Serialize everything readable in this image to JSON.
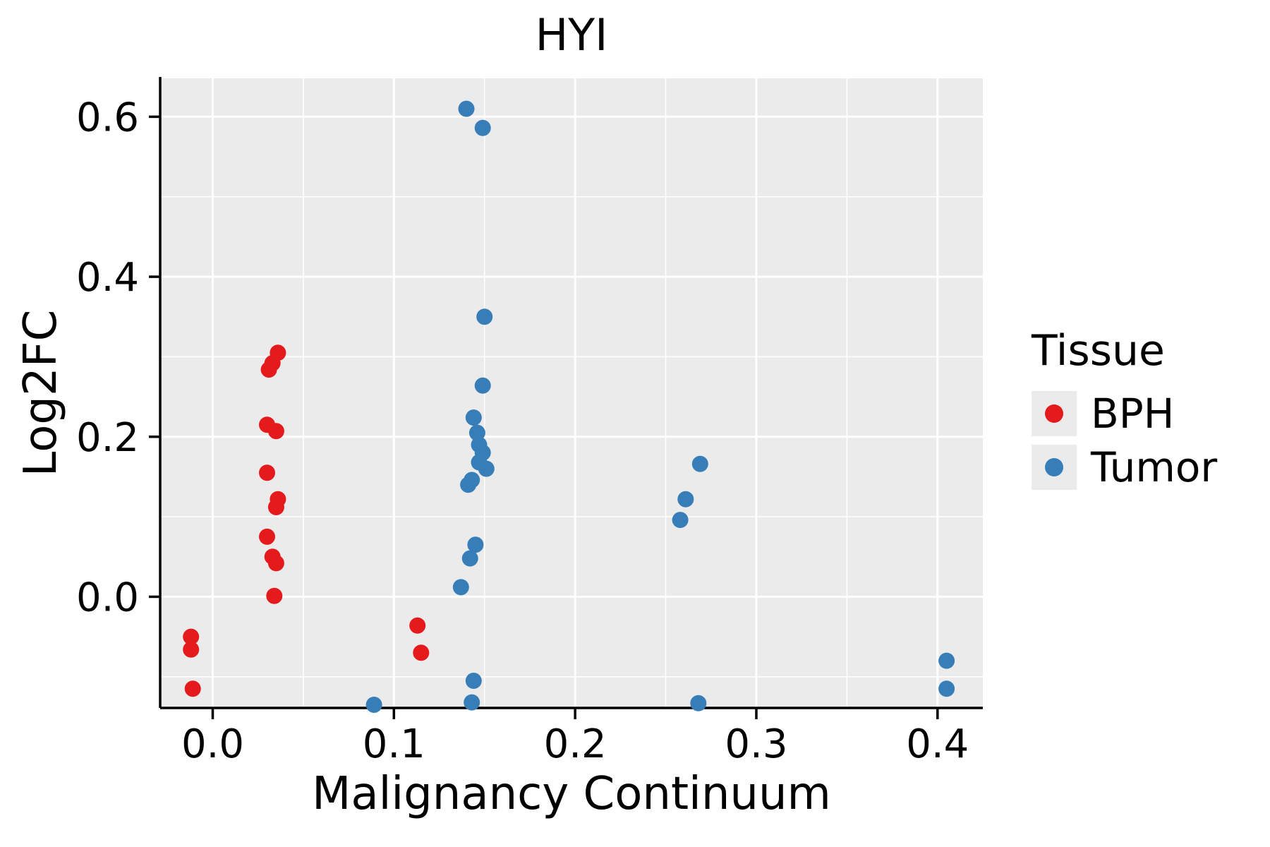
{
  "chart_data": {
    "type": "scatter",
    "title": "HYI",
    "xlabel": "Malignancy Continuum",
    "ylabel": "Log2FC",
    "legend_title": "Tissue",
    "legend_position": "right",
    "grid": true,
    "xlim": [
      -0.029,
      0.425
    ],
    "ylim": [
      -0.139,
      0.648
    ],
    "xticks": [
      0.0,
      0.1,
      0.2,
      0.3,
      0.4
    ],
    "xtick_labels": [
      "0.0",
      "0.1",
      "0.2",
      "0.3",
      "0.4"
    ],
    "yticks": [
      0.0,
      0.2,
      0.4,
      0.6
    ],
    "ytick_labels": [
      "0.0",
      "0.2",
      "0.4",
      "0.6"
    ],
    "xticks_minor": [
      0.05,
      0.15,
      0.25,
      0.35
    ],
    "yticks_minor": [
      -0.1,
      0.1,
      0.3,
      0.5
    ],
    "colors": {
      "panel_bg": "#EBEBEB",
      "grid": "#FFFFFF",
      "axis": "#000000",
      "bph": "#E41A1C",
      "tumor": "#377EB8"
    },
    "series": [
      {
        "name": "BPH",
        "color": "#E41A1C",
        "points": [
          [
            -0.012,
            -0.05
          ],
          [
            -0.012,
            -0.066
          ],
          [
            -0.011,
            -0.115
          ],
          [
            0.031,
            0.284
          ],
          [
            0.033,
            0.292
          ],
          [
            0.036,
            0.305
          ],
          [
            0.03,
            0.215
          ],
          [
            0.035,
            0.207
          ],
          [
            0.03,
            0.155
          ],
          [
            0.036,
            0.122
          ],
          [
            0.035,
            0.112
          ],
          [
            0.03,
            0.075
          ],
          [
            0.033,
            0.05
          ],
          [
            0.035,
            0.042
          ],
          [
            0.034,
            0.001
          ],
          [
            0.113,
            -0.036
          ],
          [
            0.115,
            -0.07
          ]
        ]
      },
      {
        "name": "Tumor",
        "color": "#377EB8",
        "points": [
          [
            0.089,
            -0.135
          ],
          [
            0.14,
            0.61
          ],
          [
            0.149,
            0.586
          ],
          [
            0.15,
            0.35
          ],
          [
            0.149,
            0.264
          ],
          [
            0.144,
            0.224
          ],
          [
            0.146,
            0.205
          ],
          [
            0.147,
            0.19
          ],
          [
            0.149,
            0.18
          ],
          [
            0.147,
            0.168
          ],
          [
            0.151,
            0.16
          ],
          [
            0.143,
            0.146
          ],
          [
            0.141,
            0.14
          ],
          [
            0.145,
            0.065
          ],
          [
            0.142,
            0.048
          ],
          [
            0.137,
            0.012
          ],
          [
            0.144,
            -0.105
          ],
          [
            0.143,
            -0.132
          ],
          [
            0.269,
            0.166
          ],
          [
            0.261,
            0.122
          ],
          [
            0.258,
            0.096
          ],
          [
            0.268,
            -0.133
          ],
          [
            0.405,
            -0.08
          ],
          [
            0.405,
            -0.115
          ]
        ]
      }
    ]
  }
}
